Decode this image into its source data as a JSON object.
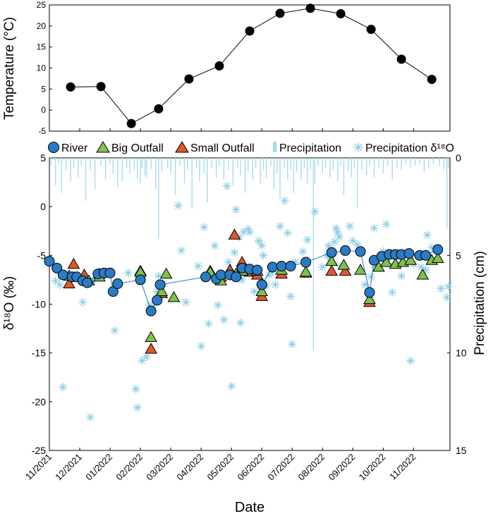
{
  "chart_data": [
    {
      "type": "line",
      "ylabel": "Temperature (°C)",
      "ylim": [
        -5,
        25
      ],
      "yticks": [
        -5,
        0,
        5,
        10,
        15,
        20,
        25
      ],
      "series": [
        {
          "name": "Temperature",
          "color": "#000000",
          "points": [
            [
              0.7,
              5.5
            ],
            [
              1.7,
              5.6
            ],
            [
              2.7,
              -3.2
            ],
            [
              3.6,
              0.3
            ],
            [
              4.6,
              7.4
            ],
            [
              5.6,
              10.5
            ],
            [
              6.6,
              18.8
            ],
            [
              7.6,
              23.0
            ],
            [
              8.6,
              24.2
            ],
            [
              9.6,
              22.9
            ],
            [
              10.6,
              19.2
            ],
            [
              11.6,
              12.1
            ],
            [
              12.6,
              7.3
            ]
          ]
        }
      ]
    },
    {
      "type": "scatter",
      "xlabel": "Date",
      "ylabel": "δ¹⁸O (‰)",
      "ylabel2": "Precipitation (cm)",
      "ylim": [
        -25,
        5
      ],
      "yticks": [
        -25,
        -20,
        -15,
        -10,
        -5,
        0,
        5
      ],
      "y2lim": [
        15,
        0
      ],
      "y2ticks": [
        0,
        5,
        10,
        15
      ],
      "xlim": [
        0,
        13.2
      ],
      "xticks": [
        0,
        1,
        2,
        3,
        4,
        5,
        6,
        7,
        8,
        9,
        10,
        11,
        12
      ],
      "xticklabels": [
        "11/2021",
        "12/2021",
        "01/2022",
        "02/2022",
        "03/2022",
        "04/2022",
        "05/2022",
        "06/2022",
        "07/2022",
        "08/2022",
        "09/2022",
        "10/2022",
        "11/2022"
      ],
      "legend": [
        "River",
        "Big Outfall",
        "Small Outfall",
        "Precipitation",
        "Precipitation δ¹⁸O"
      ],
      "colors": {
        "river": "#2a7bc4",
        "big": "#7ec24a",
        "small": "#e2562a",
        "precip": "#a6dcec",
        "precipO": "#8fcfe3"
      },
      "river": [
        [
          0,
          -5.6
        ],
        [
          0.25,
          -6.3
        ],
        [
          0.45,
          -7.0
        ],
        [
          0.75,
          -7.2
        ],
        [
          0.9,
          -7.2
        ],
        [
          1.1,
          -7.6
        ],
        [
          1.25,
          -7.8
        ],
        [
          1.6,
          -6.9
        ],
        [
          1.8,
          -6.8
        ],
        [
          2.0,
          -6.8
        ],
        [
          2.1,
          -8.7
        ],
        [
          2.25,
          -7.9
        ],
        [
          3.0,
          -7.5
        ],
        [
          3.35,
          -10.7
        ],
        [
          3.55,
          -9.6
        ],
        [
          3.65,
          -8.0
        ],
        [
          5.15,
          -7.2
        ],
        [
          5.5,
          -7.4
        ],
        [
          5.65,
          -7.0
        ],
        [
          5.95,
          -7.0
        ],
        [
          6.15,
          -7.2
        ],
        [
          6.35,
          -6.3
        ],
        [
          6.6,
          -6.4
        ],
        [
          6.85,
          -6.5
        ],
        [
          7.0,
          -8.0
        ],
        [
          7.35,
          -6.2
        ],
        [
          7.65,
          -6.1
        ],
        [
          7.95,
          -6.1
        ],
        [
          8.45,
          -5.7
        ],
        [
          9.3,
          -4.7
        ],
        [
          9.75,
          -4.5
        ],
        [
          10.25,
          -4.6
        ],
        [
          10.55,
          -8.8
        ],
        [
          10.7,
          -5.5
        ],
        [
          10.95,
          -5.1
        ],
        [
          11.2,
          -4.9
        ],
        [
          11.4,
          -4.9
        ],
        [
          11.6,
          -4.9
        ],
        [
          11.85,
          -4.8
        ],
        [
          12.2,
          -5.0
        ],
        [
          12.4,
          -5.0
        ],
        [
          12.8,
          -4.4
        ]
      ],
      "big_outfall": [
        [
          0.65,
          -7.1
        ],
        [
          1.3,
          -7.6
        ],
        [
          1.65,
          -7.2
        ],
        [
          3.0,
          -6.7
        ],
        [
          3.35,
          -13.4
        ],
        [
          3.7,
          -8.7
        ],
        [
          3.85,
          -6.9
        ],
        [
          4.1,
          -9.3
        ],
        [
          5.3,
          -6.7
        ],
        [
          5.65,
          -7.6
        ],
        [
          6.15,
          -6.9
        ],
        [
          6.35,
          -6.6
        ],
        [
          6.85,
          -6.6
        ],
        [
          7.0,
          -8.7
        ],
        [
          7.65,
          -6.5
        ],
        [
          8.45,
          -6.7
        ],
        [
          9.3,
          -5.6
        ],
        [
          9.7,
          -6.0
        ],
        [
          10.25,
          -6.5
        ],
        [
          10.55,
          -9.5
        ],
        [
          10.85,
          -6.2
        ],
        [
          11.1,
          -5.7
        ],
        [
          11.4,
          -5.9
        ],
        [
          11.65,
          -5.7
        ],
        [
          11.9,
          -5.5
        ],
        [
          12.3,
          -7.0
        ],
        [
          12.6,
          -5.5
        ],
        [
          12.8,
          -5.3
        ]
      ],
      "small_outfall": [
        [
          0.65,
          -7.9
        ],
        [
          0.8,
          -5.9
        ],
        [
          1.15,
          -7.0
        ],
        [
          1.65,
          -6.9
        ],
        [
          3.0,
          -6.6
        ],
        [
          3.35,
          -14.6
        ],
        [
          3.7,
          -8.9
        ],
        [
          5.3,
          -6.6
        ],
        [
          5.65,
          -7.2
        ],
        [
          5.95,
          -6.5
        ],
        [
          6.1,
          -2.9
        ],
        [
          6.35,
          -5.7
        ],
        [
          6.6,
          -6.7
        ],
        [
          6.85,
          -7.0
        ],
        [
          7.0,
          -9.2
        ],
        [
          7.65,
          -6.9
        ],
        [
          8.45,
          -6.8
        ],
        [
          9.3,
          -6.6
        ],
        [
          9.75,
          -6.6
        ],
        [
          10.55,
          -9.8
        ]
      ],
      "precip_d18o": [
        [
          0.2,
          -7.6
        ],
        [
          0.35,
          -8.0
        ],
        [
          0.45,
          -18.5
        ],
        [
          0.6,
          -7.4
        ],
        [
          1.1,
          -9.8
        ],
        [
          1.3,
          -7.6
        ],
        [
          1.35,
          -21.6
        ],
        [
          1.45,
          -7.6
        ],
        [
          2.15,
          -12.7
        ],
        [
          2.6,
          -6.8
        ],
        [
          2.85,
          -18.7
        ],
        [
          2.9,
          -20.6
        ],
        [
          3.05,
          -15.8
        ],
        [
          3.2,
          -15.4
        ],
        [
          3.3,
          -10.1
        ],
        [
          3.55,
          -8.7
        ],
        [
          3.6,
          -7.1
        ],
        [
          3.75,
          -7.9
        ],
        [
          4.25,
          0.1
        ],
        [
          4.35,
          -4.5
        ],
        [
          4.5,
          -9.8
        ],
        [
          4.9,
          -6.1
        ],
        [
          5.0,
          -14.3
        ],
        [
          5.1,
          -2.1
        ],
        [
          5.25,
          -12.0
        ],
        [
          5.45,
          -4.0
        ],
        [
          5.55,
          -10.1
        ],
        [
          5.75,
          -11.6
        ],
        [
          5.85,
          2.1
        ],
        [
          5.9,
          -5.7
        ],
        [
          6.0,
          -18.4
        ],
        [
          6.05,
          -6.9
        ],
        [
          6.1,
          -4.7
        ],
        [
          6.15,
          -0.3
        ],
        [
          6.25,
          -3.1
        ],
        [
          6.3,
          -11.9
        ],
        [
          6.35,
          -7.5
        ],
        [
          6.4,
          -2.6
        ],
        [
          6.55,
          -2.3
        ],
        [
          6.6,
          -2.6
        ],
        [
          6.75,
          -8.7
        ],
        [
          6.9,
          -3.5
        ],
        [
          7.0,
          -4.0
        ],
        [
          7.05,
          -5.0
        ],
        [
          7.15,
          -8.1
        ],
        [
          7.25,
          -7.0
        ],
        [
          7.35,
          -6.7
        ],
        [
          7.45,
          -8.0
        ],
        [
          7.6,
          -2.0
        ],
        [
          7.75,
          0.6
        ],
        [
          7.85,
          -2.7
        ],
        [
          7.95,
          -9.2
        ],
        [
          8.0,
          -14.1
        ],
        [
          8.1,
          -5.7
        ],
        [
          8.35,
          -4.6
        ],
        [
          8.4,
          -6.9
        ],
        [
          8.5,
          -3.4
        ],
        [
          8.75,
          -0.5
        ],
        [
          9.0,
          -6.2
        ],
        [
          9.15,
          -5.0
        ],
        [
          9.2,
          -4.0
        ],
        [
          9.25,
          -5.2
        ],
        [
          9.4,
          -3.6
        ],
        [
          9.45,
          -2.2
        ],
        [
          9.5,
          -2.6
        ],
        [
          9.55,
          -3.1
        ],
        [
          9.6,
          -6.1
        ],
        [
          9.9,
          -2.0
        ],
        [
          10.0,
          -3.5
        ],
        [
          10.15,
          -3.9
        ],
        [
          10.4,
          -8.0
        ],
        [
          10.6,
          -7.2
        ],
        [
          10.7,
          -2.2
        ],
        [
          10.75,
          -6.2
        ],
        [
          11.0,
          -4.6
        ],
        [
          11.1,
          -1.8
        ],
        [
          11.15,
          -5.8
        ],
        [
          11.3,
          -8.8
        ],
        [
          11.5,
          -5.9
        ],
        [
          11.6,
          -7.1
        ],
        [
          11.9,
          -15.8
        ],
        [
          12.0,
          -5.9
        ],
        [
          12.25,
          -6.2
        ],
        [
          12.4,
          -6.5
        ],
        [
          12.45,
          -2.9
        ],
        [
          12.6,
          -4.2
        ],
        [
          12.9,
          -8.4
        ],
        [
          13.1,
          -9.3
        ],
        [
          13.15,
          -8.2
        ]
      ],
      "precipitation": [
        [
          0.05,
          0.4
        ],
        [
          0.2,
          1.4
        ],
        [
          0.3,
          0.3
        ],
        [
          0.4,
          1.8
        ],
        [
          0.55,
          0.6
        ],
        [
          0.7,
          1.2
        ],
        [
          0.8,
          0.5
        ],
        [
          0.95,
          1.0
        ],
        [
          1.05,
          0.4
        ],
        [
          1.2,
          2.2
        ],
        [
          1.35,
          0.6
        ],
        [
          1.5,
          1.6
        ],
        [
          1.7,
          0.4
        ],
        [
          1.85,
          1.1
        ],
        [
          2.0,
          0.3
        ],
        [
          2.1,
          0.8
        ],
        [
          2.25,
          1.5
        ],
        [
          2.4,
          1.2
        ],
        [
          2.55,
          0.5
        ],
        [
          2.65,
          0.8
        ],
        [
          2.8,
          0.6
        ],
        [
          2.9,
          1.1
        ],
        [
          3.0,
          1.3
        ],
        [
          3.05,
          0.5
        ],
        [
          3.15,
          0.9
        ],
        [
          3.2,
          1.0
        ],
        [
          3.35,
          0.6
        ],
        [
          3.5,
          1.6
        ],
        [
          3.6,
          4.1
        ],
        [
          3.7,
          0.7
        ],
        [
          3.9,
          0.5
        ],
        [
          4.0,
          0.8
        ],
        [
          4.15,
          1.9
        ],
        [
          4.3,
          0.4
        ],
        [
          4.45,
          1.3
        ],
        [
          4.55,
          0.6
        ],
        [
          4.7,
          2.6
        ],
        [
          4.85,
          0.5
        ],
        [
          4.95,
          1.2
        ],
        [
          5.1,
          0.8
        ],
        [
          5.2,
          2.3
        ],
        [
          5.35,
          0.5
        ],
        [
          5.5,
          1.0
        ],
        [
          5.6,
          0.4
        ],
        [
          5.75,
          1.1
        ],
        [
          5.9,
          0.6
        ],
        [
          6.05,
          1.4
        ],
        [
          6.2,
          0.5
        ],
        [
          6.3,
          0.9
        ],
        [
          6.45,
          1.8
        ],
        [
          6.55,
          0.7
        ],
        [
          6.7,
          1.1
        ],
        [
          6.8,
          0.5
        ],
        [
          6.95,
          1.3
        ],
        [
          7.05,
          0.6
        ],
        [
          7.15,
          1.0
        ],
        [
          7.3,
          0.4
        ],
        [
          7.4,
          1.6
        ],
        [
          7.5,
          0.8
        ],
        [
          7.6,
          2.1
        ],
        [
          7.75,
          0.5
        ],
        [
          7.85,
          1.1
        ],
        [
          7.95,
          0.6
        ],
        [
          8.05,
          1.8
        ],
        [
          8.15,
          0.7
        ],
        [
          8.3,
          1.1
        ],
        [
          8.4,
          0.5
        ],
        [
          8.5,
          1.3
        ],
        [
          8.6,
          0.6
        ],
        [
          8.7,
          9.9
        ],
        [
          8.75,
          1.3
        ],
        [
          8.85,
          0.4
        ],
        [
          9.0,
          0.8
        ],
        [
          9.1,
          0.5
        ],
        [
          9.25,
          1.0
        ],
        [
          9.35,
          0.6
        ],
        [
          9.5,
          1.2
        ],
        [
          9.6,
          0.4
        ],
        [
          9.7,
          1.9
        ],
        [
          9.85,
          0.7
        ],
        [
          9.95,
          1.0
        ],
        [
          10.05,
          0.5
        ],
        [
          10.15,
          2.6
        ],
        [
          10.3,
          0.6
        ],
        [
          10.45,
          0.9
        ],
        [
          10.55,
          0.4
        ],
        [
          10.7,
          1.0
        ],
        [
          10.85,
          0.5
        ],
        [
          11.0,
          0.8
        ],
        [
          11.15,
          0.4
        ],
        [
          11.3,
          1.1
        ],
        [
          11.45,
          0.5
        ],
        [
          11.6,
          0.6
        ],
        [
          11.75,
          0.3
        ],
        [
          11.9,
          0.5
        ],
        [
          12.05,
          0.4
        ],
        [
          12.2,
          0.3
        ],
        [
          12.35,
          0.7
        ],
        [
          12.5,
          0.5
        ],
        [
          12.65,
          0.3
        ],
        [
          12.85,
          0.4
        ],
        [
          13.0,
          0.6
        ],
        [
          13.1,
          3.6
        ],
        [
          13.15,
          0.5
        ]
      ]
    }
  ]
}
